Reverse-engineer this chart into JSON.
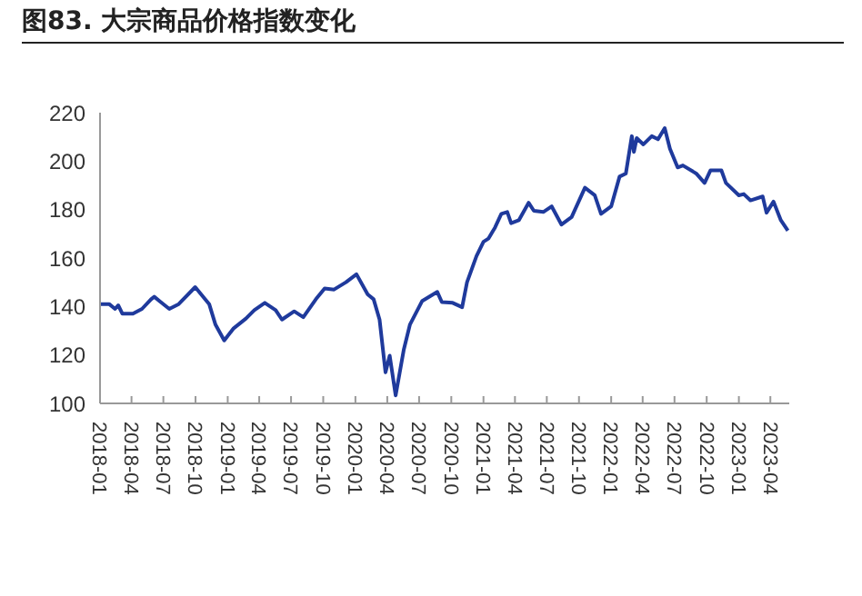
{
  "chart_data": {
    "type": "line",
    "title": "图83. 大宗商品价格指数变化",
    "x": [
      "2018-01-01",
      "2018-01-27",
      "2018-02-13",
      "2018-02-22",
      "2018-03-06",
      "2018-04-05",
      "2018-05-01",
      "2018-05-27",
      "2018-06-05",
      "2018-06-22",
      "2018-07-18",
      "2018-08-14",
      "2018-09-30",
      "2018-11-09",
      "2018-11-27",
      "2018-12-22",
      "2019-01-18",
      "2019-02-22",
      "2019-03-18",
      "2019-04-17",
      "2019-05-18",
      "2019-06-05",
      "2019-07-10",
      "2019-08-05",
      "2019-09-10",
      "2019-10-05",
      "2019-11-01",
      "2019-12-05",
      "2020-01-04",
      "2020-02-05",
      "2020-02-22",
      "2020-03-10",
      "2020-03-27",
      "2020-04-08",
      "2020-04-25",
      "2020-05-18",
      "2020-06-05",
      "2020-07-10",
      "2020-08-22",
      "2020-09-04",
      "2020-10-05",
      "2020-11-01",
      "2020-11-15",
      "2020-12-12",
      "2021-01-01",
      "2021-01-15",
      "2021-02-03",
      "2021-02-21",
      "2021-03-10",
      "2021-03-21",
      "2021-04-12",
      "2021-05-10",
      "2021-05-25",
      "2021-06-21",
      "2021-07-15",
      "2021-08-12",
      "2021-09-10",
      "2021-10-18",
      "2021-11-15",
      "2021-12-03",
      "2022-01-01",
      "2022-01-25",
      "2022-02-12",
      "2022-03-01",
      "2022-03-07",
      "2022-03-15",
      "2022-04-03",
      "2022-04-27",
      "2022-05-15",
      "2022-06-03",
      "2022-06-18",
      "2022-07-10",
      "2022-07-25",
      "2022-09-01",
      "2022-09-25",
      "2022-10-12",
      "2022-11-12",
      "2022-11-25",
      "2023-01-01",
      "2023-01-15",
      "2023-02-03",
      "2023-03-10",
      "2023-03-21",
      "2023-04-10",
      "2023-05-01",
      "2023-05-21"
    ],
    "series": [
      {
        "color": "#1f3a9c",
        "values": [
          141,
          141,
          139,
          140.5,
          137,
          137,
          139,
          143,
          144,
          142,
          139,
          141,
          148,
          141,
          132.5,
          126,
          131,
          135,
          138.5,
          141.5,
          138.5,
          134.6,
          138,
          135.6,
          143,
          147.4,
          147,
          150,
          153.3,
          145,
          143,
          134.6,
          112.8,
          119.7,
          103.3,
          122,
          132.6,
          142.3,
          146,
          141.8,
          141.5,
          139.7,
          150,
          160.8,
          166.7,
          168,
          172.6,
          178.2,
          179,
          174.4,
          175.6,
          182.8,
          179.5,
          179,
          181.3,
          173.8,
          176.9,
          189,
          185.9,
          178.2,
          181.3,
          193.6,
          194.9,
          210.3,
          203.8,
          209.5,
          206.9,
          210.3,
          209,
          213.6,
          205.1,
          197.4,
          198.2,
          194.9,
          191,
          196.2,
          196.2,
          191,
          185.9,
          186.4,
          183.8,
          185.4,
          178.7,
          183.3,
          175.6,
          171.3
        ]
      }
    ],
    "xlim": [
      "2018-01-01",
      "2023-05-25"
    ],
    "xticks": [
      "2018-01",
      "2018-04",
      "2018-07",
      "2018-10",
      "2019-01",
      "2019-04",
      "2019-07",
      "2019-10",
      "2020-01",
      "2020-04",
      "2020-07",
      "2020-10",
      "2021-01",
      "2021-04",
      "2021-07",
      "2021-10",
      "2022-01",
      "2022-04",
      "2022-07",
      "2022-10",
      "2023-01",
      "2023-04"
    ],
    "ylim": [
      100,
      220
    ],
    "yticks": [
      100,
      120,
      140,
      160,
      180,
      200,
      220
    ],
    "grid": false,
    "legend": false,
    "marker": "none",
    "line_style": "solid"
  }
}
